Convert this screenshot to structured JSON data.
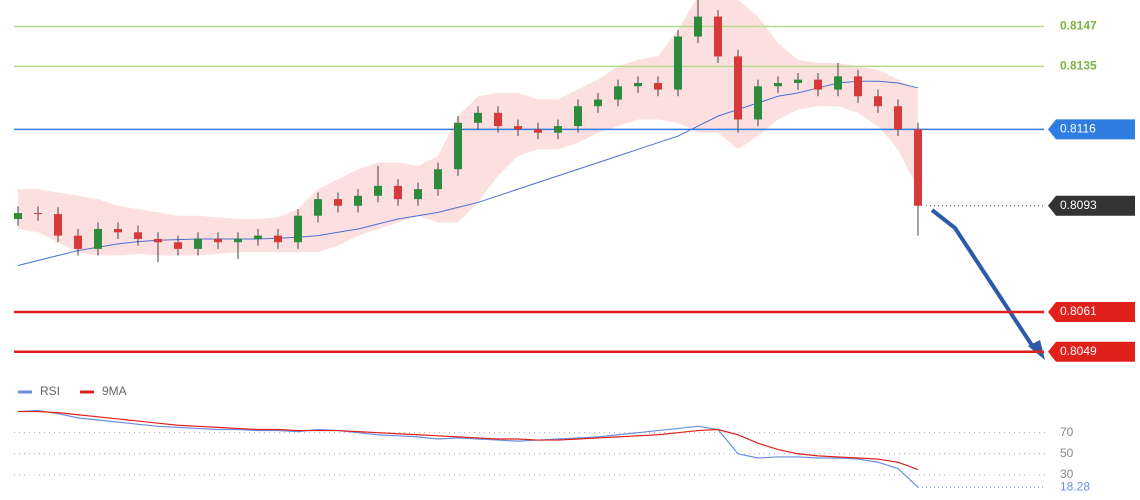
{
  "chart_data": {
    "type": "candlestick",
    "ylim": [
      0.8042,
      0.8155
    ],
    "up_color": "#2e8b3e",
    "down_color": "#d63a3a",
    "open": [
      0.8089,
      0.80908,
      0.80905,
      0.8084,
      0.808,
      0.8086,
      0.8085,
      0.8083,
      0.8082,
      0.808,
      0.8083,
      0.8082,
      0.8083,
      0.8084,
      0.8082,
      0.809,
      0.8095,
      0.8093,
      0.8096,
      0.8099,
      0.8095,
      0.8098,
      0.8104,
      0.8118,
      0.8121,
      0.8117,
      0.8116,
      0.8115,
      0.8117,
      0.8123,
      0.8125,
      0.8129,
      0.813,
      0.8128,
      0.8144,
      0.815,
      0.8138,
      0.8119,
      0.8129,
      0.813,
      0.8131,
      0.8128,
      0.8132,
      0.8126,
      0.8123,
      0.8116
    ],
    "high": [
      0.80928,
      0.80928,
      0.80925,
      0.8086,
      0.8088,
      0.8088,
      0.8087,
      0.8085,
      0.8084,
      0.8085,
      0.8085,
      0.8085,
      0.8086,
      0.8086,
      0.8092,
      0.8097,
      0.8097,
      0.8098,
      0.8105,
      0.8101,
      0.81,
      0.8106,
      0.812,
      0.8123,
      0.8123,
      0.8119,
      0.8118,
      0.8119,
      0.8125,
      0.8127,
      0.8131,
      0.8132,
      0.8132,
      0.8146,
      0.8155,
      0.8152,
      0.814,
      0.8131,
      0.8132,
      0.8133,
      0.8133,
      0.8136,
      0.8134,
      0.8128,
      0.8125,
      0.8118
    ],
    "low": [
      0.8087,
      0.80885,
      0.8082,
      0.8078,
      0.8078,
      0.8083,
      0.8081,
      0.8076,
      0.8078,
      0.8078,
      0.808,
      0.8077,
      0.8081,
      0.808,
      0.808,
      0.8088,
      0.8091,
      0.8091,
      0.8094,
      0.8093,
      0.8093,
      0.8096,
      0.8102,
      0.8116,
      0.8115,
      0.8114,
      0.8113,
      0.8113,
      0.8115,
      0.8121,
      0.8123,
      0.8127,
      0.8126,
      0.8126,
      0.8142,
      0.8136,
      0.8115,
      0.8117,
      0.8127,
      0.8128,
      0.8126,
      0.8126,
      0.8124,
      0.8121,
      0.8114,
      0.8084
    ],
    "close": [
      0.80908,
      0.80905,
      0.8084,
      0.808,
      0.8086,
      0.8085,
      0.8083,
      0.8082,
      0.808,
      0.8083,
      0.8082,
      0.8083,
      0.8084,
      0.8082,
      0.809,
      0.8095,
      0.8093,
      0.8096,
      0.8099,
      0.8095,
      0.8098,
      0.8104,
      0.8118,
      0.8121,
      0.8117,
      0.8116,
      0.8115,
      0.8117,
      0.8123,
      0.8125,
      0.8129,
      0.813,
      0.8128,
      0.8144,
      0.815,
      0.8138,
      0.8119,
      0.8129,
      0.813,
      0.8131,
      0.8128,
      0.8132,
      0.8126,
      0.8123,
      0.8116,
      0.8093
    ],
    "ma": {
      "color": "#4a6fd0",
      "values": [
        0.8075,
        0.80765,
        0.8078,
        0.80795,
        0.80805,
        0.80815,
        0.80822,
        0.80826,
        0.80828,
        0.8083,
        0.8083,
        0.8083,
        0.8083,
        0.80832,
        0.80835,
        0.8084,
        0.8085,
        0.8086,
        0.80875,
        0.8089,
        0.809,
        0.8091,
        0.80925,
        0.8094,
        0.8096,
        0.8098,
        0.81,
        0.8102,
        0.8104,
        0.8106,
        0.8108,
        0.811,
        0.8112,
        0.8114,
        0.8117,
        0.812,
        0.8122,
        0.8124,
        0.8126,
        0.8127,
        0.81285,
        0.813,
        0.81305,
        0.81305,
        0.813,
        0.81285
      ]
    },
    "band": {
      "color": "#fbd3d3",
      "upper": [
        0.8098,
        0.8098,
        0.8097,
        0.8096,
        0.8095,
        0.8093,
        0.8092,
        0.8091,
        0.809,
        0.809,
        0.80895,
        0.8089,
        0.8089,
        0.80895,
        0.8092,
        0.8098,
        0.8101,
        0.8104,
        0.8106,
        0.8106,
        0.8105,
        0.8108,
        0.812,
        0.8126,
        0.8127,
        0.8127,
        0.8125,
        0.8125,
        0.8128,
        0.8131,
        0.8135,
        0.8137,
        0.8138,
        0.8146,
        0.8156,
        0.8158,
        0.8155,
        0.815,
        0.8142,
        0.8137,
        0.8136,
        0.8136,
        0.8135,
        0.8134,
        0.8131,
        0.8128
      ],
      "lower": [
        0.8086,
        0.8085,
        0.8082,
        0.8079,
        0.8078,
        0.8078,
        0.80785,
        0.8078,
        0.8078,
        0.8078,
        0.80785,
        0.8079,
        0.8079,
        0.8079,
        0.8079,
        0.8079,
        0.8081,
        0.8084,
        0.8086,
        0.8088,
        0.809,
        0.8088,
        0.8088,
        0.8094,
        0.8102,
        0.8108,
        0.811,
        0.811,
        0.8112,
        0.8115,
        0.8117,
        0.8119,
        0.8119,
        0.8118,
        0.8115,
        0.8115,
        0.811,
        0.8114,
        0.8119,
        0.8122,
        0.8123,
        0.8123,
        0.8121,
        0.8117,
        0.811,
        0.8098
      ]
    },
    "levels": [
      {
        "value": 0.8147,
        "color": "#b5d98a",
        "style": "text"
      },
      {
        "value": 0.8135,
        "color": "#b5d98a",
        "style": "text"
      },
      {
        "value": 0.8116,
        "color": "#2f7de1",
        "style": "box"
      },
      {
        "value": 0.8093,
        "color": "#333333",
        "style": "current"
      },
      {
        "value": 0.8061,
        "color": "#e0201b",
        "style": "box"
      },
      {
        "value": 0.8049,
        "color": "#e0201b",
        "style": "box"
      }
    ],
    "rsi": {
      "ylim": [
        10,
        100
      ],
      "yticks": [
        70,
        50,
        30
      ],
      "grid": true,
      "series": [
        {
          "name": "RSI",
          "color": "#6b8fe0",
          "values": [
            90,
            91,
            88,
            84,
            82,
            80,
            78,
            76,
            75,
            74,
            73,
            73,
            72,
            72,
            71,
            73,
            72,
            70,
            68,
            67,
            66,
            64,
            65,
            64,
            63,
            62,
            63,
            64,
            65,
            66,
            68,
            70,
            72,
            74,
            76,
            73,
            50,
            46,
            47,
            47,
            46,
            46,
            45,
            42,
            36,
            18.28
          ]
        },
        {
          "name": "9MA",
          "color": "#e0201b",
          "values": [
            90,
            90,
            89,
            87,
            85,
            83,
            81,
            79,
            77,
            76,
            75,
            74,
            73,
            73,
            72,
            72,
            72,
            71,
            70,
            69,
            68,
            67,
            66,
            65,
            64,
            64,
            63,
            63,
            64,
            65,
            66,
            67,
            68,
            70,
            72,
            73,
            68,
            60,
            54,
            50,
            48,
            47,
            46,
            45,
            42,
            35
          ]
        }
      ]
    }
  }
}
